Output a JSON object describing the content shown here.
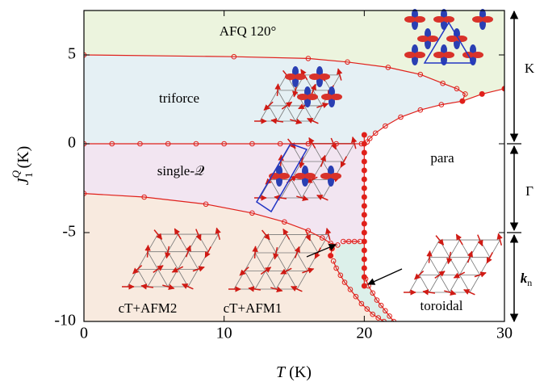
{
  "chart_data": {
    "type": "line",
    "xlabel": {
      "symbol": "T",
      "unit": " (K)"
    },
    "ylabel": {
      "symbol": "J",
      "superscript": "Q",
      "subscript": "1",
      "unit": " (K)"
    },
    "xlim": [
      0,
      30
    ],
    "xticks": [
      0,
      10,
      20,
      30
    ],
    "ylim": [
      -10,
      7.5
    ],
    "yticks": [
      -10,
      -5,
      0,
      5
    ],
    "regions": [
      "AFQ 120°",
      "triforce",
      "single-𝒬",
      "para",
      "cT+AFM2",
      "cT+AFM1",
      "toroidal"
    ],
    "side_labels": {
      "top": "K",
      "middle": "Γ",
      "bottom": {
        "base": "k",
        "subscript": "n"
      }
    },
    "series": [
      {
        "color": "#e0201b",
        "marker": "open",
        "x": [
          0,
          10.7,
          16,
          18.8,
          21.7,
          24,
          25.6,
          26.6,
          27.2,
          27.0,
          25.5,
          24,
          22.6,
          21.5,
          20.8,
          20.4,
          20.2
        ],
        "values": [
          5,
          4.9,
          4.8,
          4.6,
          4.3,
          3.9,
          3.4,
          3.1,
          2.8,
          2.4,
          2.2,
          1.9,
          1.5,
          1.0,
          0.6,
          0.3,
          0.1
        ]
      },
      {
        "color": "#e0201b",
        "marker": "filled",
        "x": [
          27.0,
          28.4,
          30
        ],
        "values": [
          2.4,
          2.8,
          3.1
        ]
      },
      {
        "color": "#e0201b",
        "marker": "open",
        "x": [
          0,
          2,
          4,
          6,
          8,
          10,
          12,
          14,
          16,
          18,
          19.8
        ],
        "values": [
          0,
          0,
          0,
          0,
          0,
          0,
          0,
          0,
          0,
          0,
          0
        ]
      },
      {
        "color": "#e0201b",
        "marker": "filled",
        "x": [
          20,
          20,
          20,
          20,
          20,
          20,
          20,
          20,
          20,
          20,
          20,
          20,
          20,
          20,
          20,
          20,
          20,
          20
        ],
        "values": [
          0.5,
          0,
          -0.5,
          -1,
          -1.5,
          -2,
          -2.5,
          -3,
          -3.5,
          -4,
          -4.5,
          -5,
          -5.5,
          -6,
          -6.5,
          -7,
          -7.5,
          -8
        ]
      },
      {
        "color": "#e0201b",
        "marker": "open",
        "x": [
          0,
          4.3,
          8.7,
          12,
          14.3,
          16,
          17,
          17.6,
          18.1
        ],
        "values": [
          -2.8,
          -3.0,
          -3.4,
          -3.9,
          -4.4,
          -4.9,
          -5.3,
          -5.6,
          -5.7
        ]
      },
      {
        "color": "#e0201b",
        "marker": "open",
        "x": [
          18.5,
          18.9,
          19.3,
          19.7
        ],
        "values": [
          -5.5,
          -5.5,
          -5.5,
          -5.5
        ]
      },
      {
        "color": "#e0201b",
        "marker": "filled",
        "x": [
          17.7,
          17.6
        ],
        "values": [
          -5.9,
          -6.3
        ]
      },
      {
        "color": "#e0201b",
        "marker": "open",
        "x": [
          17.8,
          18.0,
          18.3,
          18.6,
          19.0,
          19.4,
          19.8,
          20.2,
          20.6,
          21.0,
          21.4
        ],
        "values": [
          -6.6,
          -7,
          -7.4,
          -7.8,
          -8.2,
          -8.6,
          -9,
          -9.3,
          -9.6,
          -9.8,
          -10
        ]
      },
      {
        "color": "#e0201b",
        "marker": "open",
        "x": [
          20.1,
          20.3,
          20.6,
          20.9,
          21.2,
          21.5,
          21.8,
          22.1
        ],
        "values": [
          -7.6,
          -8,
          -8.4,
          -8.8,
          -9.1,
          -9.4,
          -9.7,
          -10
        ]
      }
    ]
  }
}
